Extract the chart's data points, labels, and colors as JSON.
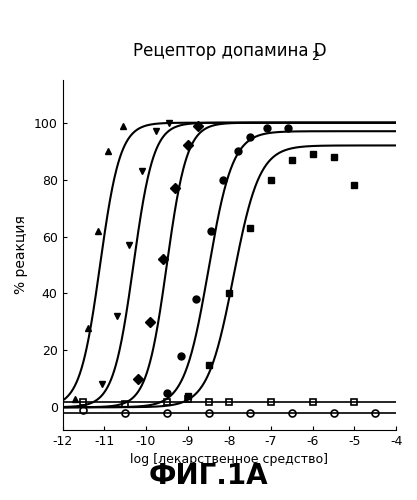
{
  "title": "Рецептор допамина D",
  "title_sub": "2",
  "ylabel": "% реакция",
  "xlabel": "log [лекарственное средство]",
  "fig_label": "ФИГ.1А",
  "xlim": [
    -12,
    -4
  ],
  "ylim": [
    -8,
    115
  ],
  "yticks": [
    0,
    20,
    40,
    60,
    80,
    100
  ],
  "xticks": [
    -12,
    -11,
    -10,
    -9,
    -8,
    -7,
    -6,
    -5,
    -4
  ],
  "xtick_labels": [
    "-12",
    "-11",
    "-10",
    "-9",
    "-8",
    "-7",
    "-6",
    "-5",
    "-4"
  ],
  "sigmoidal_curves": [
    {
      "ec50": -11.1,
      "emax": 100,
      "hill": 1.8,
      "marker": "^",
      "fillstyle": "full"
    },
    {
      "ec50": -10.3,
      "emax": 100,
      "hill": 1.8,
      "marker": "v",
      "fillstyle": "full"
    },
    {
      "ec50": -9.5,
      "emax": 100,
      "hill": 1.8,
      "marker": "D",
      "fillstyle": "full"
    },
    {
      "ec50": -8.5,
      "emax": 97,
      "hill": 1.5,
      "marker": "o",
      "fillstyle": "full"
    },
    {
      "ec50": -7.9,
      "emax": 92,
      "hill": 1.4,
      "marker": "s",
      "fillstyle": "full"
    }
  ],
  "flat_curves": [
    {
      "yval": 2.0,
      "marker": "s",
      "fillstyle": "none"
    },
    {
      "yval": -2.0,
      "marker": "o",
      "fillstyle": "none"
    }
  ],
  "scatter": [
    {
      "marker": "^",
      "fillstyle": "full",
      "x": [
        -11.7,
        -11.4,
        -11.15,
        -10.9,
        -10.55
      ],
      "y": [
        3,
        28,
        62,
        90,
        99
      ]
    },
    {
      "marker": "v",
      "fillstyle": "full",
      "x": [
        -11.05,
        -10.7,
        -10.4,
        -10.1,
        -9.75,
        -9.45
      ],
      "y": [
        8,
        32,
        57,
        83,
        97,
        100
      ]
    },
    {
      "marker": "D",
      "fillstyle": "full",
      "x": [
        -10.2,
        -9.9,
        -9.6,
        -9.3,
        -9.0,
        -8.75
      ],
      "y": [
        10,
        30,
        52,
        77,
        92,
        99
      ]
    },
    {
      "marker": "o",
      "fillstyle": "full",
      "x": [
        -9.5,
        -9.15,
        -8.8,
        -8.45,
        -8.15,
        -7.8,
        -7.5,
        -7.1,
        -6.6
      ],
      "y": [
        5,
        18,
        38,
        62,
        80,
        90,
        95,
        98,
        98
      ]
    },
    {
      "marker": "s",
      "fillstyle": "full",
      "x": [
        -9.0,
        -8.5,
        -8.0,
        -7.5,
        -7.0,
        -6.5,
        -6.0,
        -5.5,
        -5.0
      ],
      "y": [
        4,
        15,
        40,
        63,
        80,
        87,
        89,
        88,
        78
      ]
    },
    {
      "marker": "s",
      "fillstyle": "none",
      "x": [
        -11.5,
        -10.5,
        -9.5,
        -9.0,
        -8.5,
        -8.0,
        -7.0,
        -6.0,
        -5.0
      ],
      "y": [
        2,
        1,
        2,
        3,
        2,
        2,
        2,
        2,
        2
      ]
    },
    {
      "marker": "o",
      "fillstyle": "none",
      "x": [
        -11.5,
        -10.5,
        -9.5,
        -8.5,
        -7.5,
        -6.5,
        -5.5,
        -4.5
      ],
      "y": [
        -1,
        -2,
        -2,
        -2,
        -2,
        -2,
        -2,
        -2
      ]
    }
  ],
  "linewidth": 1.5,
  "markersize": 5,
  "background_color": "#ffffff",
  "title_fontsize": 12,
  "label_fontsize": 9,
  "fig_label_fontsize": 20
}
